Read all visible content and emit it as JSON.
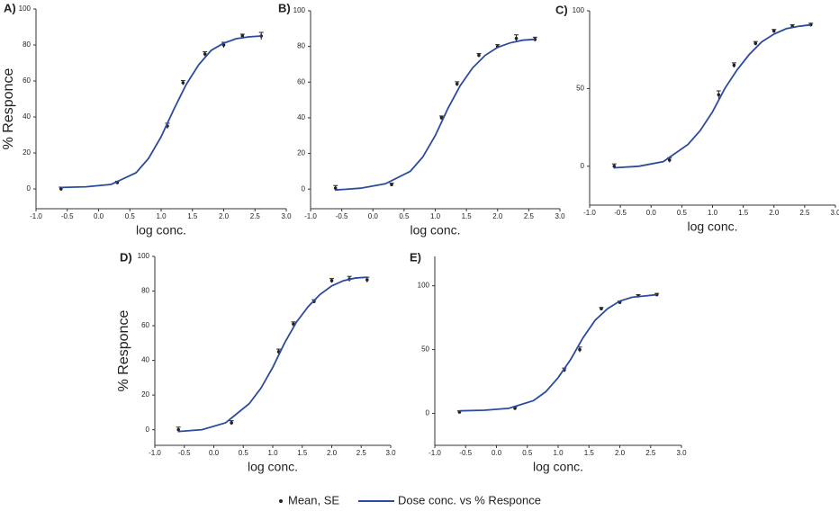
{
  "legend": [
    "Mean, SE",
    "Dose conc. vs % Responce"
  ],
  "chart_data": [
    {
      "type": "scatter",
      "title": "A)",
      "x_label": "log conc.",
      "y_label": "% Responce",
      "xlim": [
        -1,
        3
      ],
      "xticks": [
        {
          "value": -1,
          "label": "-1.0"
        },
        {
          "value": -0.5,
          "label": "-0.5"
        },
        {
          "value": 0,
          "label": "0.0"
        },
        {
          "value": 0.5,
          "label": "0.5"
        },
        {
          "value": 1,
          "label": "1.0"
        },
        {
          "value": 1.5,
          "label": "1.5"
        },
        {
          "value": 2,
          "label": "2.0"
        },
        {
          "value": 2.5,
          "label": "2.5"
        },
        {
          "value": 3,
          "label": "3.0"
        }
      ],
      "ylim": [
        -11,
        100
      ],
      "yticks": [
        0,
        20,
        40,
        60,
        80,
        100
      ],
      "series": [
        {
          "type": "scatter",
          "color": "#222222",
          "x": [
            -0.6,
            0.3,
            1.1,
            1.35,
            1.7,
            2.0,
            2.3,
            2.6
          ],
          "values": [
            0,
            3.5,
            35,
            59,
            75,
            80,
            85,
            85
          ],
          "errors": [
            1,
            0.8,
            1.5,
            1.2,
            1.2,
            1.5,
            1,
            2
          ]
        },
        {
          "type": "line",
          "color": "#2b4c9e",
          "x": [
            -0.6,
            -0.2,
            0.2,
            0.6,
            0.8,
            1.0,
            1.2,
            1.4,
            1.6,
            1.8,
            2.0,
            2.2,
            2.4,
            2.6
          ],
          "values": [
            0.8,
            1.2,
            2.5,
            9,
            17,
            29,
            44,
            58,
            69,
            77,
            81,
            83.5,
            84.5,
            85
          ]
        }
      ]
    },
    {
      "type": "scatter",
      "title": "B)",
      "x_label": "log conc.",
      "xlim": [
        -1,
        3
      ],
      "xticks": [
        {
          "value": -1,
          "label": "-1.0"
        },
        {
          "value": -0.5,
          "label": "-0.5"
        },
        {
          "value": 0,
          "label": "0.0"
        },
        {
          "value": 0.5,
          "label": "0.5"
        },
        {
          "value": 1,
          "label": "1.0"
        },
        {
          "value": 1.5,
          "label": "1.5"
        },
        {
          "value": 2,
          "label": "2.0"
        },
        {
          "value": 2.5,
          "label": "2.5"
        },
        {
          "value": 3,
          "label": "3.0"
        }
      ],
      "ylim": [
        -11,
        100
      ],
      "yticks": [
        0,
        20,
        40,
        60,
        80,
        100
      ],
      "series": [
        {
          "type": "scatter",
          "color": "#222222",
          "x": [
            -0.6,
            0.3,
            1.1,
            1.35,
            1.7,
            2.0,
            2.3,
            2.6
          ],
          "values": [
            0.5,
            2.5,
            40,
            59,
            75,
            80,
            84.5,
            84
          ],
          "errors": [
            1.5,
            0.8,
            1,
            1.2,
            1,
            1,
            2,
            1.2
          ]
        },
        {
          "type": "line",
          "color": "#2b4c9e",
          "x": [
            -0.6,
            -0.2,
            0.2,
            0.6,
            0.8,
            1.0,
            1.2,
            1.4,
            1.6,
            1.8,
            2.0,
            2.2,
            2.4,
            2.6
          ],
          "values": [
            -0.5,
            0.5,
            3,
            10,
            18,
            30,
            45,
            58,
            68,
            75,
            79.5,
            82,
            83.5,
            84
          ]
        }
      ]
    },
    {
      "type": "scatter",
      "title": "C)",
      "x_label": "log conc.",
      "xlim": [
        -1,
        3
      ],
      "xticks": [
        {
          "value": -1,
          "label": "-1.0"
        },
        {
          "value": -0.5,
          "label": "-0.5"
        },
        {
          "value": 0,
          "label": "0.0"
        },
        {
          "value": 0.5,
          "label": "0.5"
        },
        {
          "value": 1,
          "label": "1.0"
        },
        {
          "value": 1.5,
          "label": "1.5"
        },
        {
          "value": 2,
          "label": "2.0"
        },
        {
          "value": 2.5,
          "label": "2.5"
        },
        {
          "value": 3,
          "label": "3.0"
        }
      ],
      "ylim": [
        -25,
        100
      ],
      "yticks": [
        0,
        50,
        100
      ],
      "series": [
        {
          "type": "scatter",
          "color": "#222222",
          "x": [
            -0.6,
            0.3,
            1.1,
            1.35,
            1.7,
            2.0,
            2.3,
            2.6
          ],
          "values": [
            0,
            4,
            46,
            65,
            79,
            87,
            90,
            91
          ],
          "errors": [
            1.5,
            1.5,
            2.5,
            1.5,
            1.2,
            1,
            1,
            1
          ]
        },
        {
          "type": "line",
          "color": "#2b4c9e",
          "x": [
            -0.6,
            -0.2,
            0.2,
            0.6,
            0.8,
            1.0,
            1.2,
            1.4,
            1.6,
            1.8,
            2.0,
            2.2,
            2.4,
            2.6
          ],
          "values": [
            -1,
            0,
            3,
            14,
            23,
            35,
            50,
            62,
            72,
            80,
            85,
            88.5,
            90,
            91
          ]
        }
      ]
    },
    {
      "type": "scatter",
      "title": "D)",
      "x_label": "log conc.",
      "y_label": "% Responce",
      "xlim": [
        -1,
        3
      ],
      "xticks": [
        {
          "value": -1,
          "label": "-1.0"
        },
        {
          "value": -0.5,
          "label": "-0.5"
        },
        {
          "value": 0,
          "label": "0.0"
        },
        {
          "value": 0.5,
          "label": "0.5"
        },
        {
          "value": 1,
          "label": "1.0"
        },
        {
          "value": 1.5,
          "label": "1.5"
        },
        {
          "value": 2,
          "label": "2.0"
        },
        {
          "value": 2.5,
          "label": "2.5"
        },
        {
          "value": 3,
          "label": "3.0"
        }
      ],
      "ylim": [
        -9,
        100
      ],
      "yticks": [
        0,
        20,
        40,
        60,
        80,
        100
      ],
      "series": [
        {
          "type": "scatter",
          "color": "#222222",
          "x": [
            -0.6,
            0.3,
            1.1,
            1.35,
            1.7,
            2.0,
            2.3,
            2.6
          ],
          "values": [
            0,
            4,
            45,
            61,
            74,
            86,
            87,
            86.5
          ],
          "errors": [
            1.5,
            1.2,
            1.5,
            1.2,
            1,
            1.2,
            1.5,
            1.5
          ]
        },
        {
          "type": "line",
          "color": "#2b4c9e",
          "x": [
            -0.6,
            -0.2,
            0.2,
            0.6,
            0.8,
            1.0,
            1.2,
            1.4,
            1.6,
            1.8,
            2.0,
            2.2,
            2.4,
            2.6
          ],
          "values": [
            -1,
            0,
            4,
            15,
            24,
            36,
            50,
            62,
            71,
            78,
            83,
            86,
            87.5,
            88
          ]
        }
      ]
    },
    {
      "type": "scatter",
      "title": "E)",
      "x_label": "log conc.",
      "xlim": [
        -1,
        3
      ],
      "xticks": [
        {
          "value": -1,
          "label": "-1.0"
        },
        {
          "value": -0.5,
          "label": "-0.5"
        },
        {
          "value": 0,
          "label": "0.0"
        },
        {
          "value": 0.5,
          "label": "0.5"
        },
        {
          "value": 1,
          "label": "1.0"
        },
        {
          "value": 1.5,
          "label": "1.5"
        },
        {
          "value": 2,
          "label": "2.0"
        },
        {
          "value": 2.5,
          "label": "2.5"
        },
        {
          "value": 3,
          "label": "3.0"
        }
      ],
      "ylim": [
        -25,
        123
      ],
      "yticks": [
        0,
        50,
        100
      ],
      "series": [
        {
          "type": "scatter",
          "color": "#222222",
          "x": [
            -0.6,
            0.3,
            1.1,
            1.35,
            1.7,
            2.0,
            2.3,
            2.6
          ],
          "values": [
            1,
            4,
            34,
            50,
            82,
            87,
            92,
            93
          ],
          "errors": [
            1,
            1.2,
            1.5,
            2,
            1,
            1,
            1,
            1
          ]
        },
        {
          "type": "line",
          "color": "#2b4c9e",
          "x": [
            -0.6,
            -0.2,
            0.2,
            0.6,
            0.8,
            1.0,
            1.2,
            1.4,
            1.6,
            1.8,
            2.0,
            2.2,
            2.4,
            2.6
          ],
          "values": [
            2,
            2.5,
            4,
            10,
            17,
            28,
            42,
            59,
            73,
            82,
            88,
            91,
            92,
            93
          ]
        }
      ]
    }
  ]
}
